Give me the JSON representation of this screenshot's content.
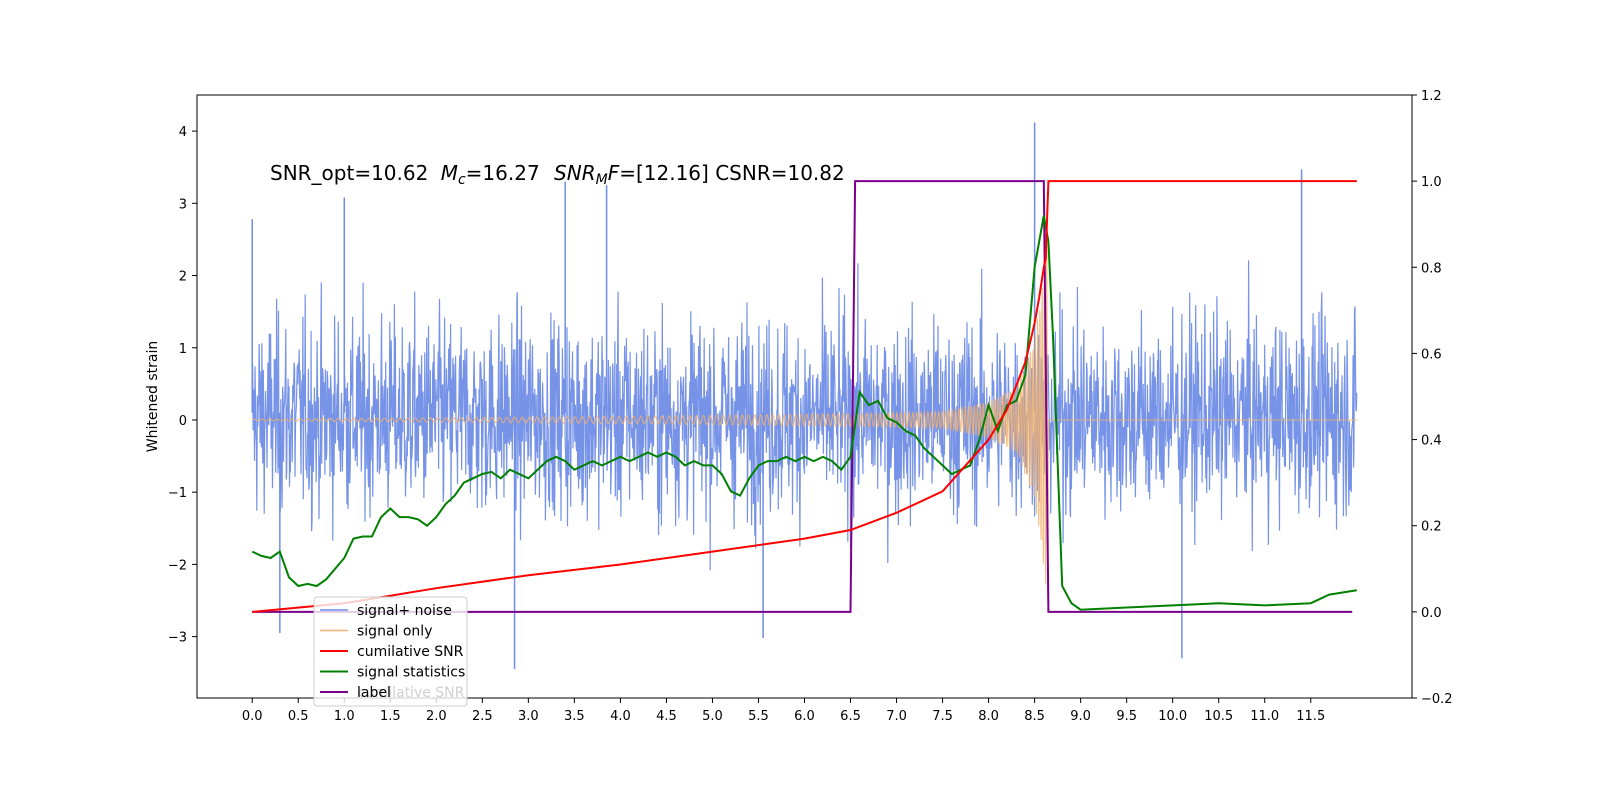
{
  "chart_data": {
    "type": "line",
    "annotation": {
      "snr_opt": "SNR_opt=10.62",
      "mc_sym": "M",
      "mc_sub": "c",
      "mc_val": "=16.27",
      "snrmf_sym": "SNR",
      "snrmf_sub": "M",
      "snrmf_tail": "F",
      "snrmf_val": "=[12.16] CSNR=10.82"
    },
    "ylabel_left": "Whitened strain",
    "ylim_left": [
      -3.85,
      4.5
    ],
    "ylim_right": [
      -0.2,
      1.2
    ],
    "xlim": [
      -0.6,
      12.6
    ],
    "x_ticks": [
      0.0,
      0.5,
      1.0,
      1.5,
      2.0,
      2.5,
      3.0,
      3.5,
      4.0,
      4.5,
      5.0,
      5.5,
      6.0,
      6.5,
      7.0,
      7.5,
      8.0,
      8.5,
      9.0,
      9.5,
      10.0,
      10.5,
      11.0,
      11.5
    ],
    "x_tick_labels": [
      "0.0",
      "0.5",
      "1.0",
      "1.5",
      "2.0",
      "2.5",
      "3.0",
      "3.5",
      "4.0",
      "4.5",
      "5.0",
      "5.5",
      "6.0",
      "6.5",
      "7.0",
      "7.5",
      "8.0",
      "8.5",
      "9.0",
      "9.5",
      "10.0",
      "10.5",
      "11.0",
      "11.5"
    ],
    "y_left_ticks": [
      -3,
      -2,
      -1,
      0,
      1,
      2,
      3,
      4
    ],
    "y_left_tick_labels": [
      "−3",
      "−2",
      "−1",
      "0",
      "1",
      "2",
      "3",
      "4"
    ],
    "y_right_ticks": [
      -0.2,
      0.0,
      0.2,
      0.4,
      0.6,
      0.8,
      1.0,
      1.2
    ],
    "y_right_tick_labels": [
      "−0.2",
      "0.0",
      "0.2",
      "0.4",
      "0.6",
      "0.8",
      "1.0",
      "1.2"
    ],
    "legend_position": "lower-left",
    "series": [
      {
        "name": "signal+ noise",
        "axis": "left",
        "color": "#6f8de6",
        "x_range": [
          0.0,
          12.0
        ],
        "band_approx": [
          -1.6,
          2.1
        ],
        "peaks": [
          [
            0.0,
            2.78
          ],
          [
            0.3,
            -2.95
          ],
          [
            1.0,
            3.08
          ],
          [
            2.85,
            -3.45
          ],
          [
            3.4,
            3.3
          ],
          [
            3.85,
            3.25
          ],
          [
            5.55,
            -3.02
          ],
          [
            8.5,
            4.12
          ],
          [
            10.1,
            -3.3
          ],
          [
            11.4,
            3.47
          ]
        ]
      },
      {
        "name": "signal only",
        "axis": "left",
        "color": "#f0b070",
        "x_range": [
          0.0,
          12.0
        ],
        "envelope": [
          [
            0.0,
            0.01
          ],
          [
            4.0,
            0.05
          ],
          [
            6.0,
            0.08
          ],
          [
            7.0,
            0.1
          ],
          [
            7.5,
            0.12
          ],
          [
            8.0,
            0.25
          ],
          [
            8.3,
            0.45
          ],
          [
            8.5,
            1.1
          ],
          [
            8.65,
            2.7
          ],
          [
            8.66,
            0.0
          ],
          [
            12.0,
            0.0
          ]
        ]
      },
      {
        "name": "cumilative SNR",
        "axis": "right",
        "color": "#ff0000",
        "x": [
          0.0,
          1.0,
          2.0,
          3.0,
          4.0,
          5.0,
          6.0,
          6.5,
          7.0,
          7.5,
          8.0,
          8.2,
          8.4,
          8.5,
          8.55,
          8.6,
          8.62,
          8.65,
          8.66,
          12.0
        ],
        "y": [
          0.0,
          0.02,
          0.055,
          0.085,
          0.11,
          0.14,
          0.17,
          0.19,
          0.23,
          0.28,
          0.4,
          0.47,
          0.58,
          0.67,
          0.73,
          0.8,
          0.82,
          1.0,
          1.0,
          1.0
        ]
      },
      {
        "name": "signal statistics",
        "axis": "right",
        "color": "#008000",
        "x": [
          0.0,
          0.1,
          0.2,
          0.3,
          0.4,
          0.5,
          0.6,
          0.7,
          0.8,
          0.9,
          1.0,
          1.1,
          1.2,
          1.3,
          1.4,
          1.5,
          1.6,
          1.7,
          1.8,
          1.9,
          2.0,
          2.1,
          2.2,
          2.3,
          2.4,
          2.5,
          2.6,
          2.7,
          2.8,
          2.9,
          3.0,
          3.1,
          3.2,
          3.3,
          3.4,
          3.5,
          3.6,
          3.7,
          3.8,
          3.9,
          4.0,
          4.1,
          4.2,
          4.3,
          4.4,
          4.5,
          4.6,
          4.7,
          4.8,
          4.9,
          5.0,
          5.1,
          5.2,
          5.3,
          5.4,
          5.5,
          5.6,
          5.7,
          5.8,
          5.9,
          6.0,
          6.1,
          6.2,
          6.3,
          6.4,
          6.5,
          6.6,
          6.7,
          6.8,
          6.9,
          7.0,
          7.1,
          7.2,
          7.3,
          7.4,
          7.5,
          7.6,
          7.7,
          7.8,
          7.9,
          8.0,
          8.1,
          8.2,
          8.3,
          8.4,
          8.5,
          8.55,
          8.6,
          8.65,
          8.7,
          8.8,
          8.9,
          9.0,
          9.5,
          10.0,
          10.5,
          11.0,
          11.5,
          11.7,
          12.0
        ],
        "y": [
          0.14,
          0.13,
          0.125,
          0.14,
          0.08,
          0.06,
          0.065,
          0.06,
          0.075,
          0.1,
          0.125,
          0.17,
          0.175,
          0.175,
          0.22,
          0.24,
          0.22,
          0.22,
          0.215,
          0.2,
          0.22,
          0.25,
          0.27,
          0.3,
          0.31,
          0.32,
          0.325,
          0.31,
          0.33,
          0.32,
          0.31,
          0.33,
          0.35,
          0.36,
          0.35,
          0.33,
          0.34,
          0.35,
          0.34,
          0.35,
          0.36,
          0.35,
          0.36,
          0.37,
          0.36,
          0.37,
          0.36,
          0.34,
          0.35,
          0.34,
          0.34,
          0.32,
          0.28,
          0.27,
          0.31,
          0.34,
          0.35,
          0.35,
          0.36,
          0.35,
          0.36,
          0.35,
          0.36,
          0.35,
          0.33,
          0.36,
          0.51,
          0.48,
          0.49,
          0.45,
          0.44,
          0.42,
          0.41,
          0.38,
          0.36,
          0.34,
          0.32,
          0.33,
          0.34,
          0.4,
          0.48,
          0.42,
          0.48,
          0.49,
          0.55,
          0.8,
          0.86,
          0.92,
          0.86,
          0.64,
          0.06,
          0.02,
          0.005,
          0.01,
          0.015,
          0.02,
          0.015,
          0.02,
          0.04,
          0.05
        ]
      },
      {
        "name": "label",
        "axis": "right",
        "color": "#7a008c",
        "x": [
          0.0,
          6.5,
          6.55,
          8.6,
          8.65,
          11.95
        ],
        "y": [
          0.0,
          0.0,
          1.0,
          1.0,
          0.0,
          0.0
        ]
      }
    ],
    "legend_shadow_text": "cumilative SNR"
  }
}
